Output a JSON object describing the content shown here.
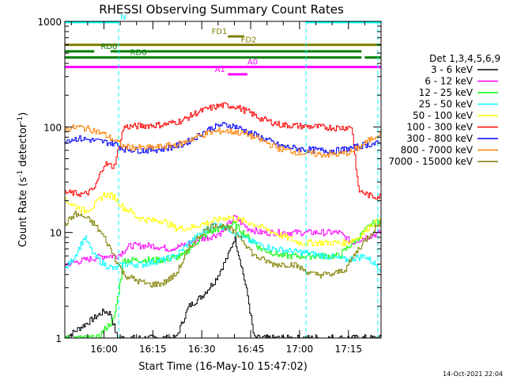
{
  "chart_data": {
    "type": "line",
    "title": "RHESSI Observing Summary Count Rates",
    "xlabel": "Start Time (16-May-10 15:47:02)",
    "ylabel_main": "Count Rate (s",
    "ylabel_sup1": "-1",
    "ylabel_mid": " detector",
    "ylabel_sup2": "-1",
    "ylabel_end": ")",
    "yscale": "log",
    "ylim": [
      1,
      1000
    ],
    "xlim_minutes": [
      -12,
      85
    ],
    "xticks": [
      {
        "t": 0,
        "label": "16:00"
      },
      {
        "t": 15,
        "label": "16:15"
      },
      {
        "t": 30,
        "label": "16:30"
      },
      {
        "t": 45,
        "label": "16:45"
      },
      {
        "t": 60,
        "label": "17:00"
      },
      {
        "t": 75,
        "label": "17:15"
      }
    ],
    "yticks": [
      {
        "v": 1,
        "label": "1"
      },
      {
        "v": 10,
        "label": "10"
      },
      {
        "v": 100,
        "label": "100"
      },
      {
        "v": 1000,
        "label": "1000"
      }
    ],
    "legend_title": "Det 1,3,4,5,6,9",
    "legend_position": "right",
    "timestamp": "14-Oct-2021 22:04",
    "series": [
      {
        "name": "3 - 6 keV",
        "color": "#000000",
        "points": [
          [
            -12,
            1
          ],
          [
            0,
            1.8
          ],
          [
            2,
            1.7
          ],
          [
            4,
            1
          ],
          [
            22,
            1
          ],
          [
            26,
            2
          ],
          [
            30,
            2.5
          ],
          [
            34,
            3.5
          ],
          [
            38,
            6
          ],
          [
            40,
            9
          ],
          [
            42,
            5
          ],
          [
            44,
            2.5
          ],
          [
            46,
            1
          ],
          [
            85,
            1
          ]
        ]
      },
      {
        "name": "6 - 12 keV",
        "color": "#ff00ff",
        "points": [
          [
            -12,
            5
          ],
          [
            0,
            6
          ],
          [
            4,
            6
          ],
          [
            8,
            7.5
          ],
          [
            15,
            7.5
          ],
          [
            20,
            7
          ],
          [
            24,
            7.5
          ],
          [
            28,
            8.5
          ],
          [
            32,
            9
          ],
          [
            36,
            10
          ],
          [
            40,
            14
          ],
          [
            44,
            11
          ],
          [
            48,
            10
          ],
          [
            55,
            10
          ],
          [
            58,
            10
          ],
          [
            65,
            10
          ],
          [
            72,
            10
          ],
          [
            76,
            8
          ],
          [
            80,
            9
          ],
          [
            85,
            10
          ]
        ]
      },
      {
        "name": "12 - 25 keV",
        "color": "#00ff00",
        "points": [
          [
            -12,
            1
          ],
          [
            -2,
            1
          ],
          [
            0,
            1.2
          ],
          [
            3,
            1.5
          ],
          [
            6,
            5.5
          ],
          [
            12,
            5.5
          ],
          [
            18,
            5.5
          ],
          [
            24,
            6
          ],
          [
            28,
            8
          ],
          [
            32,
            10
          ],
          [
            36,
            11
          ],
          [
            40,
            12
          ],
          [
            44,
            9
          ],
          [
            48,
            7
          ],
          [
            55,
            6
          ],
          [
            65,
            6
          ],
          [
            72,
            6
          ],
          [
            78,
            9
          ],
          [
            82,
            12
          ],
          [
            85,
            13
          ]
        ]
      },
      {
        "name": "25 - 50 keV",
        "color": "#00ffff",
        "points": [
          [
            -12,
            4.5
          ],
          [
            -9,
            6
          ],
          [
            -6,
            9
          ],
          [
            -3,
            6
          ],
          [
            0,
            5
          ],
          [
            3,
            4.5
          ],
          [
            6,
            5
          ],
          [
            12,
            5
          ],
          [
            18,
            5.5
          ],
          [
            22,
            6
          ],
          [
            26,
            8
          ],
          [
            30,
            10
          ],
          [
            34,
            12
          ],
          [
            38,
            11
          ],
          [
            42,
            9
          ],
          [
            46,
            8
          ],
          [
            52,
            7
          ],
          [
            60,
            6.5
          ],
          [
            68,
            6
          ],
          [
            74,
            5.5
          ],
          [
            80,
            6
          ],
          [
            85,
            4.5
          ]
        ]
      },
      {
        "name": "50 - 100 keV",
        "color": "#ffff00",
        "points": [
          [
            -12,
            20
          ],
          [
            -9,
            18
          ],
          [
            -6,
            16
          ],
          [
            -3,
            18
          ],
          [
            0,
            23
          ],
          [
            3,
            22
          ],
          [
            6,
            17
          ],
          [
            8,
            16
          ],
          [
            10,
            14
          ],
          [
            14,
            13
          ],
          [
            18,
            13
          ],
          [
            22,
            11
          ],
          [
            26,
            11
          ],
          [
            30,
            12
          ],
          [
            34,
            13
          ],
          [
            38,
            14
          ],
          [
            42,
            13
          ],
          [
            46,
            12
          ],
          [
            52,
            10
          ],
          [
            60,
            8
          ],
          [
            68,
            8
          ],
          [
            74,
            8
          ],
          [
            78,
            9
          ],
          [
            82,
            12
          ],
          [
            85,
            13
          ]
        ]
      },
      {
        "name": "100 - 300 keV",
        "color": "#ff0000",
        "points": [
          [
            -12,
            24
          ],
          [
            -6,
            23
          ],
          [
            -3,
            26
          ],
          [
            0,
            45
          ],
          [
            3,
            42
          ],
          [
            6,
            100
          ],
          [
            12,
            103
          ],
          [
            18,
            105
          ],
          [
            24,
            115
          ],
          [
            28,
            135
          ],
          [
            32,
            150
          ],
          [
            36,
            160
          ],
          [
            40,
            158
          ],
          [
            44,
            140
          ],
          [
            48,
            120
          ],
          [
            54,
            105
          ],
          [
            60,
            102
          ],
          [
            66,
            100
          ],
          [
            72,
            98
          ],
          [
            76,
            100
          ],
          [
            78,
            25
          ],
          [
            82,
            22
          ],
          [
            85,
            22
          ]
        ]
      },
      {
        "name": "300 - 800 keV",
        "color": "#0000ff",
        "points": [
          [
            -12,
            75
          ],
          [
            -8,
            78
          ],
          [
            -4,
            75
          ],
          [
            0,
            72
          ],
          [
            3,
            70
          ],
          [
            6,
            62
          ],
          [
            12,
            60
          ],
          [
            18,
            62
          ],
          [
            24,
            68
          ],
          [
            28,
            80
          ],
          [
            32,
            95
          ],
          [
            36,
            105
          ],
          [
            40,
            102
          ],
          [
            44,
            90
          ],
          [
            48,
            80
          ],
          [
            54,
            66
          ],
          [
            60,
            62
          ],
          [
            66,
            60
          ],
          [
            72,
            60
          ],
          [
            76,
            63
          ],
          [
            80,
            68
          ],
          [
            85,
            70
          ]
        ]
      },
      {
        "name": "800 - 7000 keV",
        "color": "#ff8000",
        "points": [
          [
            -12,
            95
          ],
          [
            -8,
            100
          ],
          [
            -4,
            95
          ],
          [
            0,
            85
          ],
          [
            3,
            75
          ],
          [
            6,
            65
          ],
          [
            12,
            63
          ],
          [
            18,
            65
          ],
          [
            24,
            70
          ],
          [
            28,
            80
          ],
          [
            32,
            88
          ],
          [
            36,
            92
          ],
          [
            40,
            90
          ],
          [
            44,
            85
          ],
          [
            48,
            75
          ],
          [
            54,
            62
          ],
          [
            60,
            57
          ],
          [
            66,
            55
          ],
          [
            72,
            55
          ],
          [
            76,
            58
          ],
          [
            80,
            70
          ],
          [
            85,
            90
          ]
        ]
      },
      {
        "name": "7000 - 15000 keV",
        "color": "#7f7f00",
        "points": [
          [
            -12,
            12
          ],
          [
            -9,
            15
          ],
          [
            -6,
            14
          ],
          [
            -3,
            12
          ],
          [
            0,
            9
          ],
          [
            3,
            6
          ],
          [
            6,
            4
          ],
          [
            10,
            3.5
          ],
          [
            14,
            3.2
          ],
          [
            18,
            3.3
          ],
          [
            22,
            4
          ],
          [
            26,
            7
          ],
          [
            30,
            10
          ],
          [
            34,
            12
          ],
          [
            38,
            11
          ],
          [
            42,
            9
          ],
          [
            46,
            6
          ],
          [
            52,
            5
          ],
          [
            58,
            5
          ],
          [
            64,
            4
          ],
          [
            70,
            4
          ],
          [
            74,
            4.5
          ],
          [
            78,
            7
          ],
          [
            82,
            10
          ],
          [
            85,
            13
          ]
        ]
      }
    ],
    "flag_bars": [
      {
        "label": "N",
        "color": "#00ffff",
        "y": 985,
        "segments": [
          [
            -12,
            4.5
          ],
          [
            62,
            85
          ]
        ],
        "label_t": 5
      },
      {
        "label": "FD1",
        "color": "#7f7f00",
        "y": 720,
        "segments": [
          [
            38,
            43
          ]
        ],
        "label_t": 33
      },
      {
        "label": "FD2",
        "color": "#7f7f00",
        "y": 600,
        "segments": [
          [
            -12,
            85
          ]
        ],
        "label_t": 42
      },
      {
        "label": "RD0",
        "color": "#007f00",
        "y": 520,
        "segments": [
          [
            -12,
            -3
          ],
          [
            2,
            79
          ]
        ],
        "label_t": -1
      },
      {
        "label": "RD6",
        "color": "#007f00",
        "y": 455,
        "segments": [
          [
            -12,
            79
          ],
          [
            80,
            85
          ]
        ],
        "label_t": 8
      },
      {
        "label": "A0",
        "color": "#ff00ff",
        "y": 370,
        "segments": [
          [
            -12,
            85
          ]
        ],
        "label_t": 44
      },
      {
        "label": "A1",
        "color": "#ff00ff",
        "y": 315,
        "segments": [
          [
            38,
            44
          ]
        ],
        "label_t": 34
      }
    ],
    "vertical_markers": [
      {
        "t": 4.5,
        "color": "#00ffff",
        "style": "dashed"
      },
      {
        "t": 62,
        "color": "#00ffff",
        "style": "dashed"
      },
      {
        "t": 84,
        "color": "#00ffff",
        "style": "dashed"
      }
    ]
  }
}
